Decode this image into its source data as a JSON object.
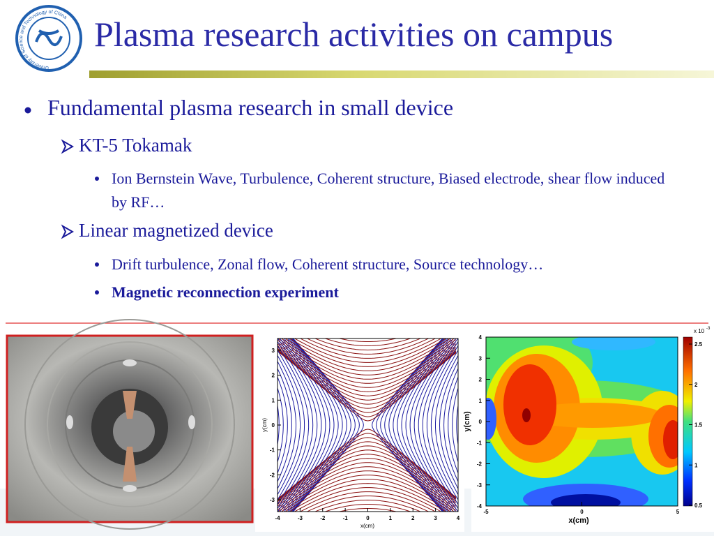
{
  "header": {
    "title": "Plasma research activities on campus",
    "logo_text": "University of Science and Technology of China"
  },
  "bullets": [
    {
      "text": "Fundamental plasma research in small device",
      "children": [
        {
          "text": "KT-5 Tokamak",
          "children": [
            {
              "text": "Ion Bernstein Wave, Turbulence, Coherent structure, Biased electrode, shear flow induced by RF…"
            }
          ]
        },
        {
          "text": "Linear magnetized device",
          "children": [
            {
              "text": "Drift turbulence, Zonal flow, Coherent structure, Source technology…"
            },
            {
              "text": "Magnetic reconnection experiment",
              "bold": true
            }
          ]
        }
      ]
    }
  ],
  "field_lines": {
    "xticks": [
      -4,
      -3,
      -2,
      -1,
      0,
      1,
      2,
      3,
      4
    ],
    "yticks": [
      -3,
      -2,
      -1,
      0,
      1,
      2,
      3
    ],
    "xlabel": "x(cm)",
    "ylabel": "y(cm)"
  },
  "contour_map": {
    "xticks": [
      -5,
      0,
      5
    ],
    "yticks": [
      -4,
      -3,
      -2,
      -1,
      0,
      1,
      2,
      3,
      4
    ],
    "xlabel": "x(cm)",
    "ylabel": "y(cm)",
    "colorbar_ticks": [
      0.5,
      1,
      1.5,
      2,
      2.5
    ],
    "colorbar_multiplier": "x 10",
    "colorbar_exponent": "-3"
  }
}
